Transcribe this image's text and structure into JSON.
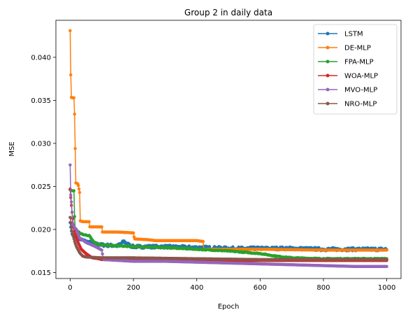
{
  "chart_data": {
    "type": "line",
    "title": "Group 2 in daily data",
    "xlabel": "Epoch",
    "ylabel": "MSE",
    "xlim": [
      -45,
      1045
    ],
    "ylim": [
      0.0143,
      0.0443
    ],
    "xticks": [
      0,
      200,
      400,
      600,
      800,
      1000
    ],
    "yticks": [
      0.015,
      0.02,
      0.025,
      0.03,
      0.035,
      0.04
    ],
    "ytick_labels": [
      "0.015",
      "0.020",
      "0.025",
      "0.030",
      "0.035",
      "0.040"
    ],
    "grid": false,
    "legend_position": "top-right",
    "marker": "circle",
    "series": [
      {
        "name": "LSTM",
        "color": "#1f77b4",
        "points": [
          [
            0,
            0.0208
          ],
          [
            3,
            0.02
          ],
          [
            6,
            0.0195
          ],
          [
            10,
            0.0192
          ],
          [
            15,
            0.0191
          ],
          [
            20,
            0.019
          ],
          [
            30,
            0.0189
          ],
          [
            50,
            0.0186
          ],
          [
            70,
            0.0184
          ],
          [
            100,
            0.0182
          ],
          [
            150,
            0.0181
          ],
          [
            170,
            0.0186
          ],
          [
            190,
            0.0181
          ],
          [
            200,
            0.018
          ],
          [
            300,
            0.018
          ],
          [
            400,
            0.0179
          ],
          [
            420,
            0.0179
          ],
          [
            500,
            0.0178
          ],
          [
            600,
            0.0178
          ],
          [
            700,
            0.0178
          ],
          [
            800,
            0.0177
          ],
          [
            900,
            0.0177
          ],
          [
            1000,
            0.0177
          ]
        ],
        "noise": 0.00018
      },
      {
        "name": "DE-MLP",
        "color": "#ff7f0e",
        "points": [
          [
            0,
            0.0431
          ],
          [
            3,
            0.0354
          ],
          [
            5,
            0.0353
          ],
          [
            8,
            0.0353
          ],
          [
            12,
            0.0353
          ],
          [
            14,
            0.0334
          ],
          [
            18,
            0.0254
          ],
          [
            25,
            0.0253
          ],
          [
            30,
            0.0243
          ],
          [
            32,
            0.021
          ],
          [
            40,
            0.0209
          ],
          [
            60,
            0.0209
          ],
          [
            62,
            0.0203
          ],
          [
            80,
            0.0203
          ],
          [
            100,
            0.0203
          ],
          [
            102,
            0.0197
          ],
          [
            150,
            0.0197
          ],
          [
            200,
            0.0196
          ],
          [
            203,
            0.0189
          ],
          [
            250,
            0.0188
          ],
          [
            270,
            0.0187
          ],
          [
            350,
            0.0187
          ],
          [
            400,
            0.0187
          ],
          [
            420,
            0.0186
          ],
          [
            422,
            0.0177
          ],
          [
            600,
            0.0177
          ],
          [
            800,
            0.0176
          ],
          [
            1000,
            0.0176
          ]
        ],
        "noise": 0
      },
      {
        "name": "FPA-MLP",
        "color": "#2ca02c",
        "points": [
          [
            0,
            0.0246
          ],
          [
            5,
            0.0245
          ],
          [
            12,
            0.0245
          ],
          [
            15,
            0.02
          ],
          [
            20,
            0.0199
          ],
          [
            30,
            0.0196
          ],
          [
            40,
            0.0194
          ],
          [
            60,
            0.0193
          ],
          [
            70,
            0.0188
          ],
          [
            80,
            0.0184
          ],
          [
            100,
            0.0182
          ],
          [
            200,
            0.018
          ],
          [
            300,
            0.0179
          ],
          [
            400,
            0.0177
          ],
          [
            500,
            0.0175
          ],
          [
            600,
            0.0172
          ],
          [
            650,
            0.0169
          ],
          [
            700,
            0.0167
          ],
          [
            800,
            0.0166
          ],
          [
            900,
            0.0166
          ],
          [
            1000,
            0.0166
          ]
        ],
        "noise": 5e-05
      },
      {
        "name": "WOA-MLP",
        "color": "#d62728",
        "points": [
          [
            0,
            0.0247
          ],
          [
            3,
            0.0232
          ],
          [
            6,
            0.022
          ],
          [
            10,
            0.0205
          ],
          [
            15,
            0.0196
          ],
          [
            25,
            0.0185
          ],
          [
            35,
            0.0177
          ],
          [
            50,
            0.0172
          ],
          [
            70,
            0.0167
          ],
          [
            90,
            0.0166
          ],
          [
            100,
            0.0165
          ],
          [
            200,
            0.0165
          ],
          [
            400,
            0.0164
          ],
          [
            600,
            0.0164
          ],
          [
            800,
            0.0164
          ],
          [
            1000,
            0.0164
          ]
        ],
        "noise": 0
      },
      {
        "name": "MVO-MLP",
        "color": "#9467bd",
        "points": [
          [
            0,
            0.0275
          ],
          [
            2,
            0.024
          ],
          [
            4,
            0.0232
          ],
          [
            6,
            0.022
          ],
          [
            8,
            0.0207
          ],
          [
            12,
            0.0203
          ],
          [
            20,
            0.02
          ],
          [
            30,
            0.019
          ],
          [
            50,
            0.0185
          ],
          [
            80,
            0.018
          ],
          [
            100,
            0.0176
          ],
          [
            105,
            0.0165
          ],
          [
            200,
            0.0163
          ],
          [
            300,
            0.0163
          ],
          [
            400,
            0.0162
          ],
          [
            500,
            0.0161
          ],
          [
            600,
            0.016
          ],
          [
            700,
            0.0159
          ],
          [
            800,
            0.0158
          ],
          [
            900,
            0.0157
          ],
          [
            1000,
            0.0157
          ]
        ],
        "noise": 0
      },
      {
        "name": "NRO-MLP",
        "color": "#8c564b",
        "points": [
          [
            0,
            0.0214
          ],
          [
            3,
            0.0205
          ],
          [
            6,
            0.0198
          ],
          [
            10,
            0.0192
          ],
          [
            15,
            0.0185
          ],
          [
            20,
            0.018
          ],
          [
            30,
            0.0173
          ],
          [
            40,
            0.0169
          ],
          [
            50,
            0.0168
          ],
          [
            100,
            0.0167
          ],
          [
            200,
            0.0167
          ],
          [
            400,
            0.0166
          ],
          [
            600,
            0.0165
          ],
          [
            800,
            0.0165
          ],
          [
            1000,
            0.0165
          ]
        ],
        "noise": 0
      }
    ]
  }
}
